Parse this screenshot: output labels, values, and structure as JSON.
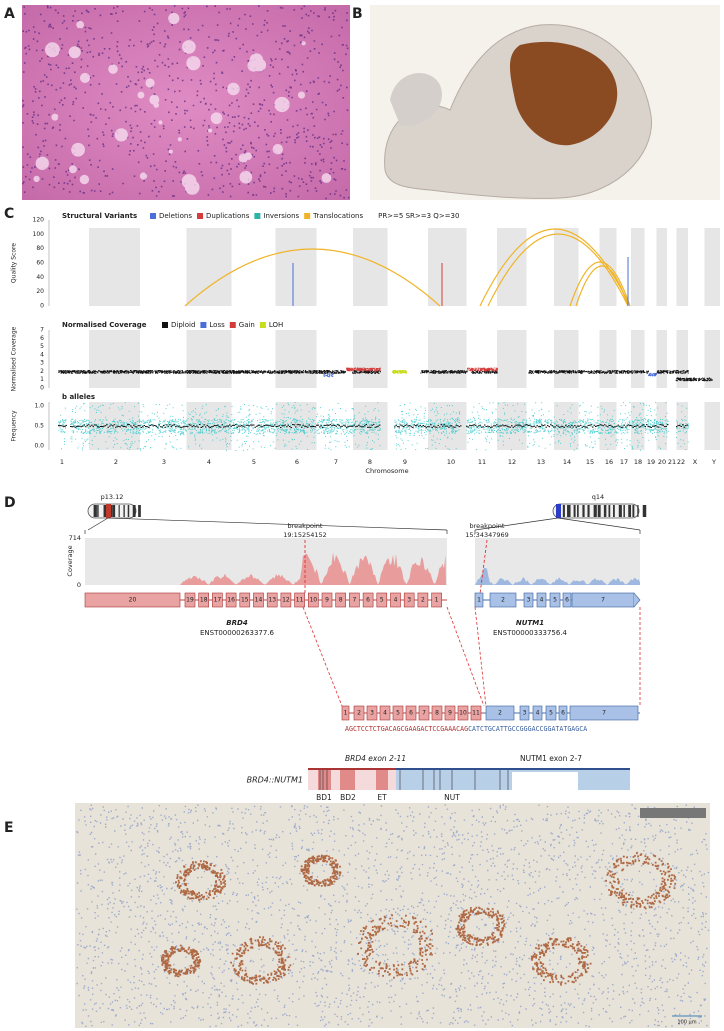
{
  "panel_labels": [
    "A",
    "B",
    "C",
    "D",
    "E"
  ],
  "structural_variants": {
    "title": "Structural Variants",
    "legend": [
      {
        "name": "Deletions",
        "color": "#4a6fd8"
      },
      {
        "name": "Duplications",
        "color": "#d43c3c"
      },
      {
        "name": "Inversions",
        "color": "#2bb5a8"
      },
      {
        "name": "Translocations",
        "color": "#f0b429"
      }
    ],
    "filter": "PR>=5 SR>=3 Q>=30",
    "ylabel": "Quality Score",
    "yticks": [
      0,
      20,
      40,
      60,
      80,
      100,
      120
    ]
  },
  "coverage": {
    "title": "Normalised Coverage",
    "legend": [
      {
        "name": "Diploid",
        "color": "#111111"
      },
      {
        "name": "Loss",
        "color": "#4a6fd8"
      },
      {
        "name": "Gain",
        "color": "#d43c3c"
      },
      {
        "name": "LOH",
        "color": "#c8dc1e"
      }
    ],
    "ylabel": "Normalised Coverage",
    "yticks": [
      0,
      1,
      2,
      3,
      4,
      5,
      6,
      7
    ]
  },
  "b_alleles": {
    "title": "b alleles",
    "ylabel": "Frequency",
    "yticks": [
      "0.0",
      "0.5",
      "1.0"
    ]
  },
  "chromosomes": [
    "1",
    "2",
    "3",
    "4",
    "5",
    "6",
    "7",
    "8",
    "9",
    "10",
    "11",
    "12",
    "13",
    "14",
    "15",
    "16",
    "17",
    "18",
    "19",
    "20",
    "21",
    "22",
    "X",
    "Y"
  ],
  "xlabel": "Chromosome",
  "fusion": {
    "left_band": "p13.12",
    "right_band": "q14",
    "coverage_label": "Coverage",
    "coverage_max": "714",
    "coverage_min": "0",
    "breakpoints": [
      {
        "label": "breakpoint",
        "position": "19:15254152"
      },
      {
        "label": "breakpoint",
        "position": "15:34347969"
      }
    ],
    "genes": [
      {
        "name": "BRD4",
        "transcript": "ENST00000263377.6",
        "exons": [
          "20",
          "19",
          "18",
          "17",
          "16",
          "15",
          "14",
          "13",
          "12",
          "11",
          "10",
          "9",
          "8",
          "7",
          "6",
          "5",
          "4",
          "3",
          "2",
          "1"
        ]
      },
      {
        "name": "NUTM1",
        "transcript": "ENST00000333756.4",
        "exons": [
          "1",
          "2",
          "3",
          "4",
          "5",
          "6",
          "7"
        ]
      }
    ],
    "fusion_exons": {
      "BRD4": [
        "1",
        "2",
        "3",
        "4",
        "5",
        "6",
        "7",
        "8",
        "9",
        "10",
        "11"
      ],
      "NUTM1": [
        "2",
        "3",
        "4",
        "5",
        "6",
        "7"
      ]
    },
    "sequence": [
      "AGCTCCTCTGACAGCGAAGACTCCGAAACAG",
      "CATCTGCATTGCCGGGACCGGATATGAGCA"
    ],
    "protein": {
      "name": "BRD4::NUTM1",
      "parts": [
        "BRD4 exon 2-11",
        "NUTM1 exon 2-7"
      ],
      "domains": [
        "BD1",
        "BD2",
        "ET",
        "NUT"
      ]
    }
  },
  "scale_bar": "100 µm"
}
